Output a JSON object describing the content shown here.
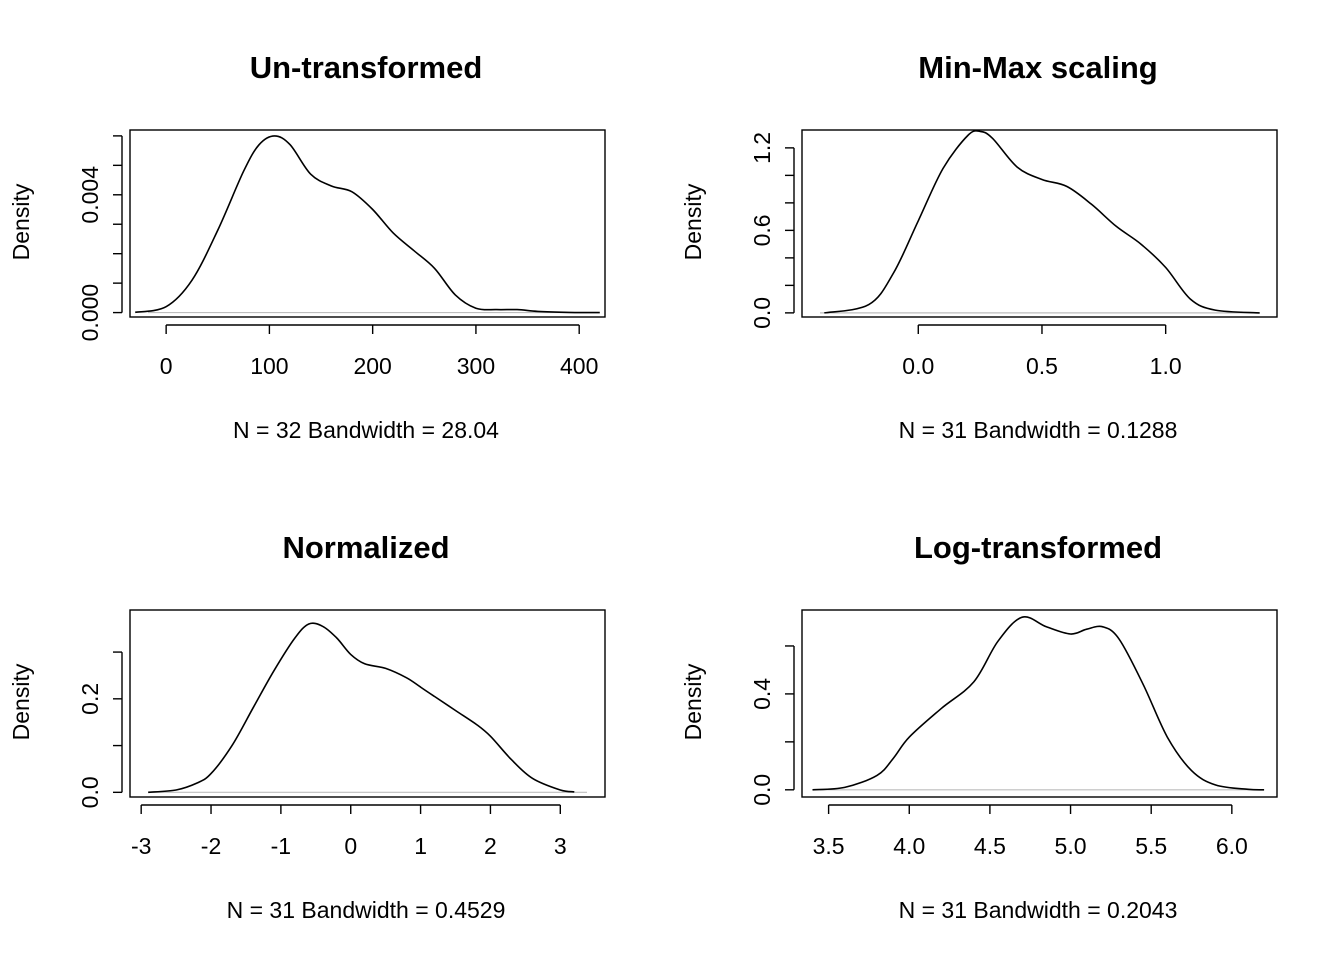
{
  "chart_data": [
    {
      "type": "line",
      "title": "Un-transformed",
      "xlabel": "N = 32   Bandwidth = 28.04",
      "ylabel": "Density",
      "xlim": [
        -35,
        425
      ],
      "ylim": [
        -0.00015,
        0.0062
      ],
      "x_ticks": [
        0,
        100,
        200,
        300,
        400
      ],
      "y_ticks": [
        0,
        0.001,
        0.002,
        0.003,
        0.004,
        0.005,
        0.006
      ],
      "y_tick_labels": [
        {
          "value": 0,
          "label": "0.000"
        },
        {
          "value": 0.004,
          "label": "0.004"
        }
      ],
      "grid": false,
      "series": [
        {
          "x": [
            -30,
            0,
            25,
            50,
            75,
            90,
            105,
            120,
            140,
            160,
            180,
            200,
            220,
            240,
            260,
            280,
            300,
            320,
            340,
            360,
            390,
            420
          ],
          "y": [
            1e-05,
            0.0002,
            0.0011,
            0.0028,
            0.0048,
            0.0057,
            0.006,
            0.0057,
            0.0047,
            0.0043,
            0.0041,
            0.0035,
            0.0027,
            0.0021,
            0.0015,
            0.0006,
            0.00015,
            0.0001,
            0.0001,
            4e-05,
            5e-06,
            0.0
          ]
        }
      ]
    },
    {
      "type": "line",
      "title": "Min-Max scaling",
      "xlabel": "N = 31   Bandwidth = 0.1288",
      "ylabel": "Density",
      "xlim": [
        -0.47,
        1.45
      ],
      "ylim": [
        -0.03,
        1.33
      ],
      "x_ticks": [
        0.0,
        0.5,
        1.0
      ],
      "x_tick_labels": [
        "0.0",
        "0.5",
        "1.0"
      ],
      "y_ticks": [
        0,
        0.2,
        0.4,
        0.6,
        0.8,
        1.0,
        1.2
      ],
      "y_tick_labels": [
        {
          "value": 0,
          "label": "0.0"
        },
        {
          "value": 0.6,
          "label": "0.6"
        },
        {
          "value": 1.2,
          "label": "1.2"
        }
      ],
      "grid": false,
      "series": [
        {
          "x": [
            -0.38,
            -0.2,
            -0.1,
            0.0,
            0.1,
            0.2,
            0.25,
            0.3,
            0.4,
            0.5,
            0.6,
            0.7,
            0.8,
            0.9,
            1.0,
            1.1,
            1.2,
            1.38
          ],
          "y": [
            0.0,
            0.06,
            0.29,
            0.67,
            1.05,
            1.29,
            1.32,
            1.27,
            1.06,
            0.97,
            0.92,
            0.79,
            0.63,
            0.5,
            0.33,
            0.1,
            0.02,
            0.0
          ]
        }
      ]
    },
    {
      "type": "line",
      "title": "Normalized",
      "xlabel": "N = 31   Bandwidth = 0.4529",
      "ylabel": "Density",
      "xlim": [
        -3.16,
        3.64
      ],
      "ylim": [
        -0.01,
        0.39
      ],
      "x_ticks": [
        -3,
        -2,
        -1,
        0,
        1,
        2,
        3
      ],
      "y_ticks": [
        0,
        0.1,
        0.2,
        0.3
      ],
      "y_tick_labels": [
        {
          "value": 0,
          "label": "0.0"
        },
        {
          "value": 0.2,
          "label": "0.2"
        }
      ],
      "grid": false,
      "series": [
        {
          "x": [
            -2.9,
            -2.5,
            -2.2,
            -2.0,
            -1.7,
            -1.4,
            -1.1,
            -0.8,
            -0.6,
            -0.4,
            -0.2,
            0.0,
            0.2,
            0.5,
            0.8,
            1.0,
            1.2,
            1.5,
            1.8,
            2.0,
            2.3,
            2.6,
            3.0,
            3.2
          ],
          "y": [
            0.0,
            0.005,
            0.02,
            0.04,
            0.1,
            0.18,
            0.26,
            0.33,
            0.36,
            0.355,
            0.33,
            0.295,
            0.275,
            0.265,
            0.245,
            0.225,
            0.205,
            0.175,
            0.145,
            0.12,
            0.07,
            0.03,
            0.005,
            0.001
          ]
        }
      ]
    },
    {
      "type": "line",
      "title": "Log-transformed",
      "xlabel": "N = 31   Bandwidth = 0.2043",
      "ylabel": "Density",
      "xlim": [
        3.335,
        6.28
      ],
      "ylim": [
        -0.03,
        0.75
      ],
      "x_ticks": [
        3.5,
        4.0,
        4.5,
        5.0,
        5.5,
        6.0
      ],
      "x_tick_labels": [
        "3.5",
        "4.0",
        "4.5",
        "5.0",
        "5.5",
        "6.0"
      ],
      "y_ticks": [
        0,
        0.2,
        0.4,
        0.6
      ],
      "y_tick_labels": [
        {
          "value": 0,
          "label": "0.0"
        },
        {
          "value": 0.4,
          "label": "0.4"
        }
      ],
      "grid": false,
      "series": [
        {
          "x": [
            3.4,
            3.6,
            3.8,
            3.9,
            4.0,
            4.2,
            4.4,
            4.55,
            4.7,
            4.85,
            5.0,
            5.1,
            5.2,
            5.3,
            5.45,
            5.6,
            5.75,
            5.9,
            6.1,
            6.2
          ],
          "y": [
            0.0,
            0.01,
            0.06,
            0.13,
            0.22,
            0.34,
            0.45,
            0.62,
            0.72,
            0.68,
            0.65,
            0.67,
            0.68,
            0.63,
            0.44,
            0.22,
            0.08,
            0.02,
            0.002,
            0.0
          ]
        }
      ]
    }
  ]
}
